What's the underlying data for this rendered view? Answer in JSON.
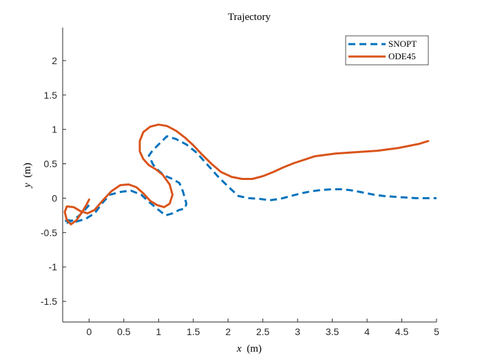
{
  "chart_data": {
    "type": "line",
    "title": "Trajectory",
    "xlabel_italic": "x",
    "xlabel_unit": "(m)",
    "ylabel_italic": "y",
    "ylabel_unit": "(m)",
    "xlim": [
      -0.38,
      5.0
    ],
    "ylim": [
      -1.8,
      2.48
    ],
    "xticks": [
      0,
      0.5,
      1,
      1.5,
      2,
      2.5,
      3,
      3.5,
      4,
      4.5,
      5
    ],
    "xtick_labels": [
      "0",
      "0.5",
      "1",
      "1.5",
      "2",
      "2.5",
      "3",
      "3.5",
      "4",
      "4.5",
      "5"
    ],
    "yticks": [
      -1.5,
      -1,
      -0.5,
      0,
      0.5,
      1,
      1.5,
      2
    ],
    "ytick_labels": [
      "-1.5",
      "-1",
      "-0.5",
      "0",
      "0.5",
      "1",
      "1.5",
      "2"
    ],
    "grid": false,
    "legend_position": "top-right",
    "series": [
      {
        "name": "SNOPT",
        "color": "#0072BD",
        "style": "dashed",
        "x": [
          0.0,
          -0.07,
          -0.15,
          -0.25,
          -0.32,
          -0.36,
          -0.3,
          -0.18,
          -0.05,
          0.08,
          0.2,
          0.3,
          0.45,
          0.6,
          0.75,
          0.88,
          1.0,
          1.1,
          1.2,
          1.3,
          1.38,
          1.4,
          1.35,
          1.3,
          1.2,
          1.08,
          1.0,
          0.92,
          0.86,
          0.92,
          1.02,
          1.12,
          1.25,
          1.4,
          1.55,
          1.7,
          1.85,
          2.0,
          2.15,
          2.3,
          2.45,
          2.6,
          2.75,
          2.9,
          3.05,
          3.2,
          3.35,
          3.5,
          3.65,
          3.8,
          3.95,
          4.1,
          4.25,
          4.4,
          4.55,
          4.7,
          4.85,
          5.0
        ],
        "y": [
          -0.1,
          -0.18,
          -0.26,
          -0.33,
          -0.36,
          -0.34,
          -0.32,
          -0.34,
          -0.3,
          -0.22,
          -0.06,
          0.05,
          0.09,
          0.11,
          0.05,
          -0.07,
          -0.17,
          -0.25,
          -0.22,
          -0.17,
          -0.15,
          -0.08,
          0.1,
          0.22,
          0.28,
          0.33,
          0.4,
          0.49,
          0.62,
          0.7,
          0.8,
          0.9,
          0.86,
          0.78,
          0.66,
          0.49,
          0.32,
          0.17,
          0.03,
          0.0,
          -0.01,
          -0.03,
          -0.01,
          0.03,
          0.07,
          0.1,
          0.12,
          0.13,
          0.13,
          0.11,
          0.08,
          0.05,
          0.03,
          0.02,
          0.01,
          0.0,
          0.0,
          0.0
        ],
        "name_shown": true
      },
      {
        "name": "ODE45",
        "color": "#D95319",
        "style": "solid",
        "x": [
          0.0,
          -0.04,
          -0.1,
          -0.18,
          -0.26,
          -0.32,
          -0.35,
          -0.32,
          -0.22,
          -0.12,
          -0.02,
          0.08,
          0.2,
          0.32,
          0.45,
          0.57,
          0.68,
          0.78,
          0.88,
          0.98,
          1.08,
          1.16,
          1.2,
          1.16,
          1.06,
          0.96,
          0.86,
          0.78,
          0.73,
          0.73,
          0.78,
          0.88,
          1.0,
          1.12,
          1.25,
          1.38,
          1.5,
          1.62,
          1.76,
          1.9,
          2.05,
          2.2,
          2.35,
          2.5,
          2.65,
          2.8,
          2.95,
          3.1,
          3.25,
          3.4,
          3.55,
          3.7,
          3.85,
          4.0,
          4.15,
          4.3,
          4.45,
          4.6,
          4.75,
          4.88
        ],
        "y": [
          -0.02,
          -0.1,
          -0.2,
          -0.32,
          -0.38,
          -0.32,
          -0.2,
          -0.12,
          -0.13,
          -0.19,
          -0.22,
          -0.17,
          -0.03,
          0.1,
          0.19,
          0.2,
          0.16,
          0.07,
          -0.04,
          -0.1,
          -0.13,
          -0.08,
          0.05,
          0.2,
          0.34,
          0.42,
          0.48,
          0.57,
          0.68,
          0.83,
          0.96,
          1.04,
          1.07,
          1.05,
          0.98,
          0.88,
          0.77,
          0.64,
          0.5,
          0.38,
          0.31,
          0.28,
          0.28,
          0.32,
          0.38,
          0.45,
          0.51,
          0.56,
          0.61,
          0.63,
          0.65,
          0.66,
          0.67,
          0.68,
          0.69,
          0.71,
          0.73,
          0.76,
          0.79,
          0.83
        ],
        "name_shown": true
      }
    ]
  }
}
